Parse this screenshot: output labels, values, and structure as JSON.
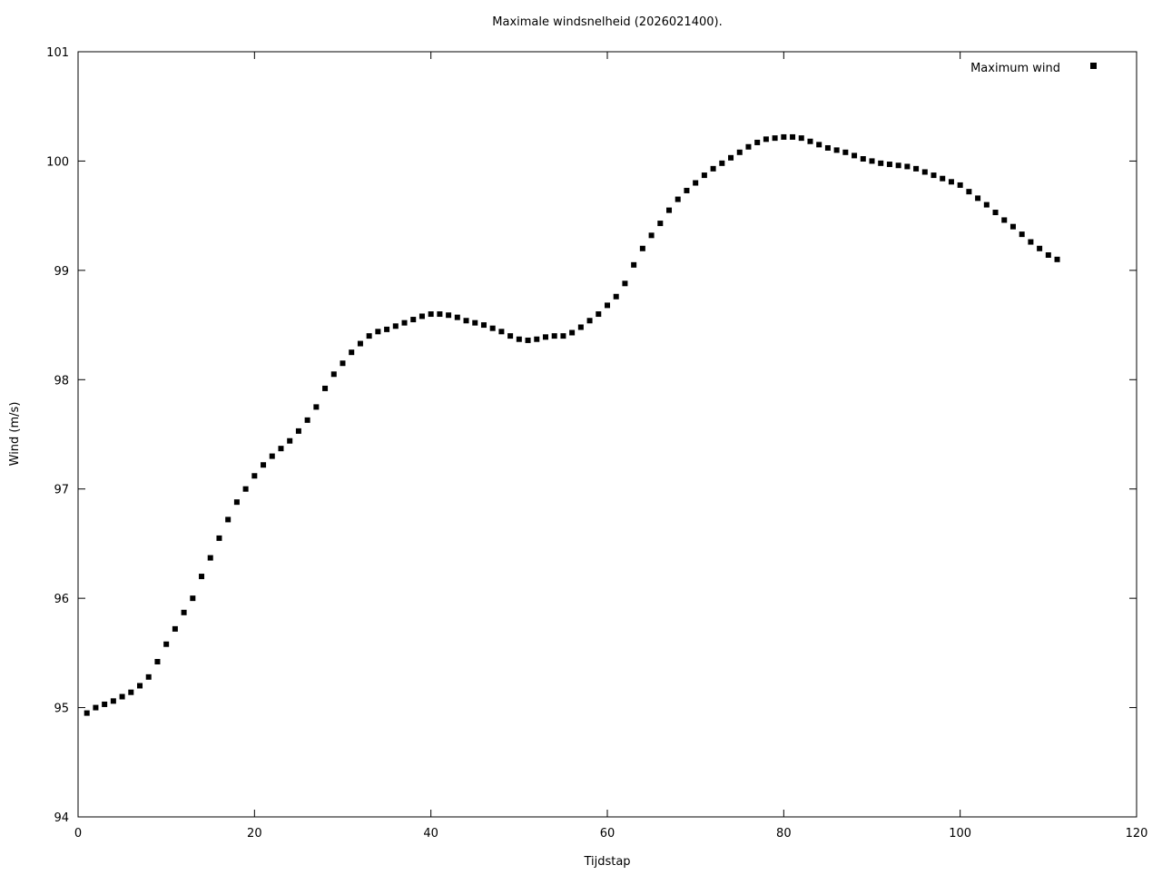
{
  "chart_data": {
    "type": "scatter",
    "title": "Maximale windsnelheid (2026021400).",
    "xlabel": "Tijdstap",
    "ylabel": "Wind (m/s)",
    "legend": "Maximum wind",
    "xlim": [
      0,
      120
    ],
    "ylim": [
      94,
      101
    ],
    "xticks": [
      0,
      20,
      40,
      60,
      80,
      100,
      120
    ],
    "yticks": [
      94,
      95,
      96,
      97,
      98,
      99,
      100,
      101
    ],
    "grid": false,
    "legend_position": "top-right-inside",
    "marker": "filled-square",
    "marker_color": "#000000",
    "background_color": "#ffffff",
    "x": [
      1,
      2,
      3,
      4,
      5,
      6,
      7,
      8,
      9,
      10,
      11,
      12,
      13,
      14,
      15,
      16,
      17,
      18,
      19,
      20,
      21,
      22,
      23,
      24,
      25,
      26,
      27,
      28,
      29,
      30,
      31,
      32,
      33,
      34,
      35,
      36,
      37,
      38,
      39,
      40,
      41,
      42,
      43,
      44,
      45,
      46,
      47,
      48,
      49,
      50,
      51,
      52,
      53,
      54,
      55,
      56,
      57,
      58,
      59,
      60,
      61,
      62,
      63,
      64,
      65,
      66,
      67,
      68,
      69,
      70,
      71,
      72,
      73,
      74,
      75,
      76,
      77,
      78,
      79,
      80,
      81,
      82,
      83,
      84,
      85,
      86,
      87,
      88,
      89,
      90,
      91,
      92,
      93,
      94,
      95,
      96,
      97,
      98,
      99,
      100,
      101,
      102,
      103,
      104,
      105,
      106,
      107,
      108,
      109,
      110,
      111
    ],
    "y": [
      94.95,
      95.0,
      95.03,
      95.06,
      95.1,
      95.14,
      95.2,
      95.28,
      95.42,
      95.58,
      95.72,
      95.87,
      96.0,
      96.2,
      96.37,
      96.55,
      96.72,
      96.88,
      97.0,
      97.12,
      97.22,
      97.3,
      97.37,
      97.44,
      97.53,
      97.63,
      97.75,
      97.92,
      98.05,
      98.15,
      98.25,
      98.33,
      98.4,
      98.44,
      98.46,
      98.49,
      98.52,
      98.55,
      98.58,
      98.6,
      98.6,
      98.59,
      98.57,
      98.54,
      98.52,
      98.5,
      98.47,
      98.44,
      98.4,
      98.37,
      98.36,
      98.37,
      98.39,
      98.4,
      98.4,
      98.43,
      98.48,
      98.54,
      98.6,
      98.68,
      98.76,
      98.88,
      99.05,
      99.2,
      99.32,
      99.43,
      99.55,
      99.65,
      99.73,
      99.8,
      99.87,
      99.93,
      99.98,
      100.03,
      100.08,
      100.13,
      100.17,
      100.2,
      100.21,
      100.22,
      100.22,
      100.21,
      100.18,
      100.15,
      100.12,
      100.1,
      100.08,
      100.05,
      100.02,
      100.0,
      99.98,
      99.97,
      99.96,
      99.95,
      99.93,
      99.9,
      99.87,
      99.84,
      99.81,
      99.78,
      99.72,
      99.66,
      99.6,
      99.53,
      99.46,
      99.4,
      99.33,
      99.26,
      99.2,
      99.14,
      99.1
    ]
  }
}
